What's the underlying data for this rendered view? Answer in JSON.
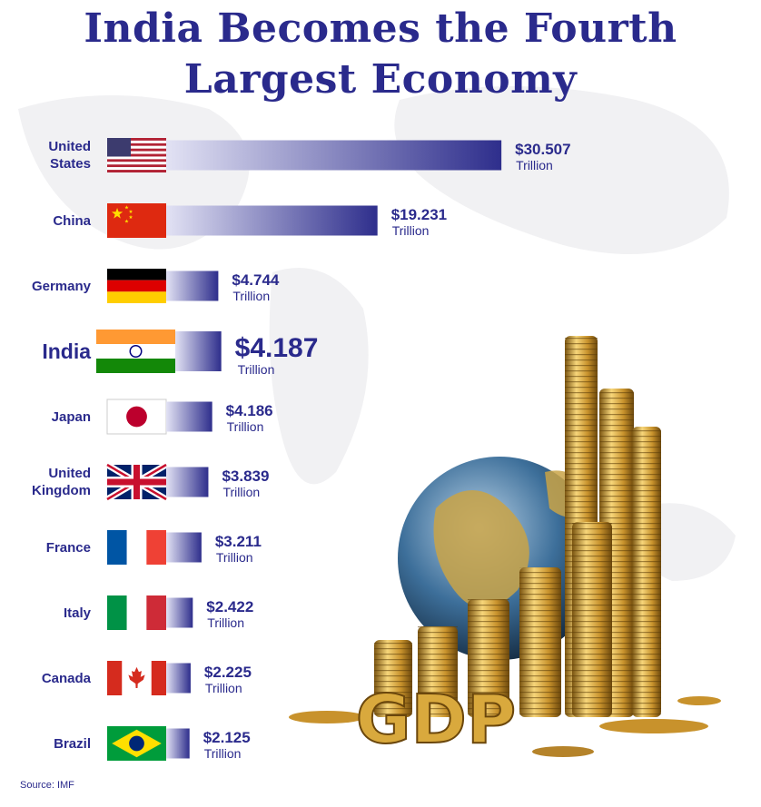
{
  "chart_data": {
    "type": "bar",
    "orientation": "horizontal",
    "title": "India Becomes the Fourth Largest Economy",
    "categories": [
      "United States",
      "China",
      "Germany",
      "India",
      "Japan",
      "United Kingdom",
      "France",
      "Italy",
      "Canada",
      "Brazil"
    ],
    "values": [
      30.507,
      19.231,
      4.744,
      4.187,
      4.186,
      3.839,
      3.211,
      2.422,
      2.225,
      2.125
    ],
    "value_labels": [
      "$30.507",
      "$19.231",
      "$4.744",
      "$4.187",
      "$4.186",
      "$3.839",
      "$3.211",
      "$2.422",
      "$2.225",
      "$2.125"
    ],
    "unit": "Trillion",
    "highlight": "India",
    "color": "#2e2e8c",
    "annotation": "GDP",
    "source": "Source: IMF"
  }
}
